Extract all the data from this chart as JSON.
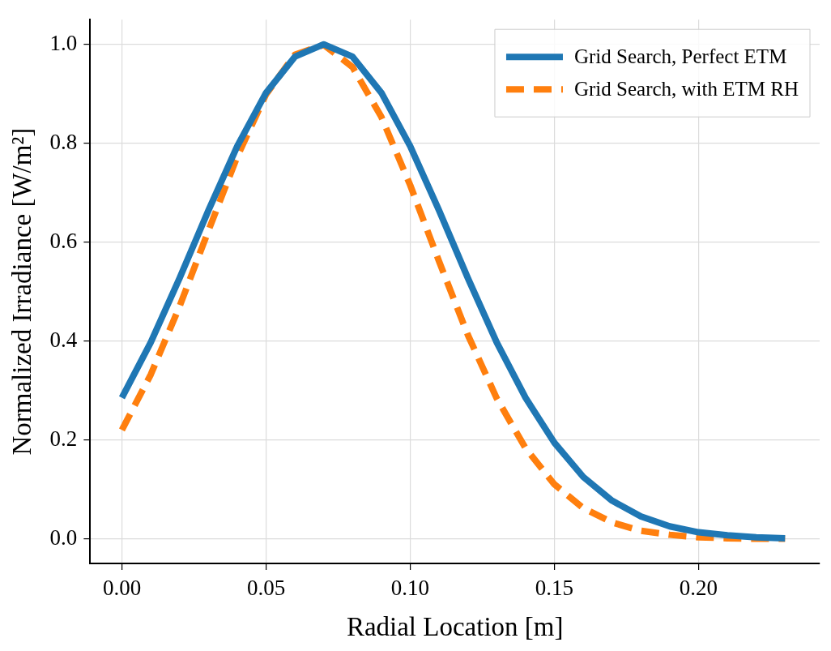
{
  "chart_data": {
    "type": "line",
    "xlabel": "Radial Location [m]",
    "ylabel": "Normalized Irradiance [W/m²]",
    "x": [
      0,
      0.01,
      0.02,
      0.03,
      0.04,
      0.05,
      0.06,
      0.07,
      0.08,
      0.09,
      0.1,
      0.11,
      0.12,
      0.13,
      0.14,
      0.15,
      0.16,
      0.17,
      0.18,
      0.19,
      0.2,
      0.21,
      0.22,
      0.23
    ],
    "series": [
      {
        "name": "Grid Search, Perfect ETM",
        "color": "#1f77b4",
        "line_style": "solid",
        "values": [
          0.285,
          0.397,
          0.527,
          0.664,
          0.794,
          0.902,
          0.975,
          1.0,
          0.975,
          0.902,
          0.794,
          0.664,
          0.527,
          0.397,
          0.285,
          0.194,
          0.125,
          0.077,
          0.045,
          0.025,
          0.013,
          0.007,
          0.003,
          0.001
        ]
      },
      {
        "name": "Grid Search, with ETM RH",
        "color": "#ff7f0e",
        "line_style": "dashed",
        "values": [
          0.22,
          0.332,
          0.47,
          0.623,
          0.773,
          0.899,
          0.979,
          0.999,
          0.954,
          0.853,
          0.715,
          0.561,
          0.412,
          0.284,
          0.183,
          0.11,
          0.062,
          0.033,
          0.016,
          0.008,
          0.003,
          0.001,
          0,
          0
        ]
      }
    ],
    "xlim": [
      -0.011,
      0.242
    ],
    "xticks": [
      {
        "value": 0,
        "label": "0.00"
      },
      0.05,
      {
        "value": 0.1,
        "label": "0.10"
      },
      0.15,
      {
        "value": 0.2,
        "label": "0.20"
      }
    ],
    "ylim": [
      -0.05,
      1.05
    ],
    "yticks": [
      {
        "value": 0,
        "label": "0.0"
      },
      0.2,
      0.4,
      0.6,
      0.8,
      {
        "value": 1,
        "label": "1.0"
      }
    ],
    "grid": true,
    "legend": "top right",
    "marker": "none"
  }
}
